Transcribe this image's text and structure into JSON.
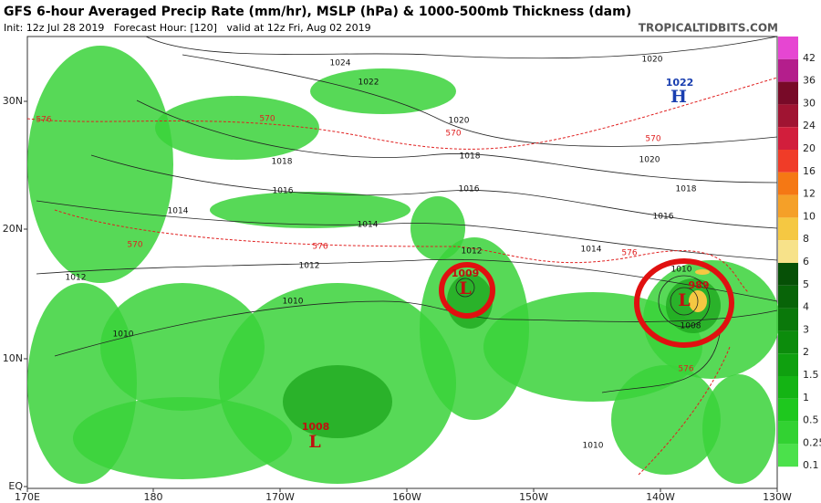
{
  "header": {
    "title": "GFS 6-hour Averaged Precip Rate (mm/hr), MSLP (hPa) & 1000-500mb Thickness (dam)",
    "init": "Init: 12z Jul 28 2019   Forecast Hour: [120]   valid at 12z Fri, Aug 02 2019",
    "source": "TROPICALTIDBITS.COM"
  },
  "axes": {
    "longitudes": [
      "170E",
      "180",
      "170W",
      "160W",
      "150W",
      "140W",
      "130W"
    ],
    "latitudes": [
      "30N",
      "20N",
      "10N",
      "EQ"
    ]
  },
  "isobars": [
    "1024",
    "1022",
    "1020",
    "1020",
    "1018",
    "1020",
    "1018",
    "1016",
    "1018",
    "1016",
    "1014",
    "1016",
    "1014",
    "1014",
    "1012",
    "1012",
    "1012",
    "1010",
    "1010",
    "1010",
    "1008",
    "1010"
  ],
  "thickness": [
    "576",
    "570",
    "570",
    "570",
    "570",
    "576",
    "576",
    "576"
  ],
  "centers": [
    {
      "pressure": "1022",
      "symbol": "H"
    },
    {
      "pressure": "1008",
      "symbol": "L"
    },
    {
      "pressure": "1009",
      "symbol": "L"
    },
    {
      "pressure": "989",
      "symbol": "L"
    }
  ],
  "colorbar": {
    "labels": [
      "42",
      "36",
      "30",
      "24",
      "20",
      "16",
      "12",
      "10",
      "8",
      "6",
      "5",
      "4",
      "3",
      "2",
      "1.5",
      "1",
      "0.5",
      "0.25",
      "0.1"
    ]
  }
}
